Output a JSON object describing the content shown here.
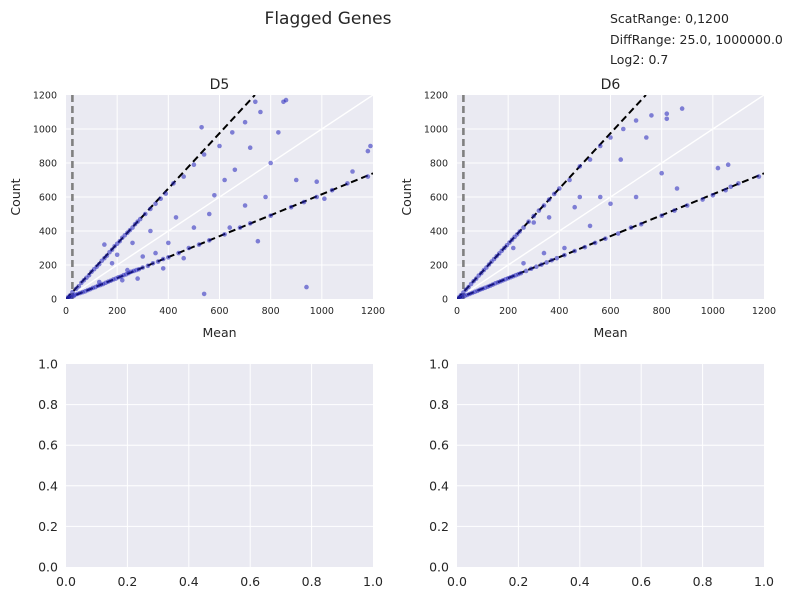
{
  "figure": {
    "title": "Flagged Genes",
    "notes": [
      "ScatRange: 0,1200",
      "DiffRange: 25.0, 1000000.0",
      "Log2: 0.7"
    ]
  },
  "colors": {
    "panel_bg": "#EAEAF2",
    "grid": "#FFFFFF",
    "points": "#2222BB",
    "fit_lines": "#000000",
    "threshold_line": "#808080"
  },
  "chart_data": [
    {
      "type": "scatter",
      "title": "D5",
      "xlabel": "Mean",
      "ylabel": "Count",
      "xlim": [
        0,
        1200
      ],
      "ylim": [
        0,
        1200
      ],
      "xticks": [
        "0",
        "200",
        "400",
        "600",
        "800",
        "1000",
        "1200"
      ],
      "yticks": [
        "0",
        "200",
        "400",
        "600",
        "800",
        "1000",
        "1200"
      ],
      "grid": true,
      "reference_lines": [
        {
          "kind": "identity",
          "style": "solid",
          "color": "#FFFFFF",
          "slope": 1.0
        },
        {
          "kind": "upper-fold",
          "style": "dashed",
          "color": "#000000",
          "slope": 1.625
        },
        {
          "kind": "lower-fold",
          "style": "dashed",
          "color": "#000000",
          "slope": 0.616
        },
        {
          "kind": "threshold",
          "style": "dashed",
          "color": "#808080",
          "x": 25
        }
      ],
      "points": [
        [
          5,
          8
        ],
        [
          10,
          6
        ],
        [
          15,
          20
        ],
        [
          20,
          10
        ],
        [
          25,
          40
        ],
        [
          30,
          18
        ],
        [
          35,
          25
        ],
        [
          40,
          60
        ],
        [
          45,
          30
        ],
        [
          50,
          75
        ],
        [
          55,
          35
        ],
        [
          60,
          95
        ],
        [
          65,
          40
        ],
        [
          70,
          110
        ],
        [
          75,
          45
        ],
        [
          80,
          125
        ],
        [
          85,
          52
        ],
        [
          90,
          140
        ],
        [
          95,
          58
        ],
        [
          100,
          160
        ],
        [
          105,
          65
        ],
        [
          110,
          175
        ],
        [
          115,
          70
        ],
        [
          120,
          190
        ],
        [
          125,
          78
        ],
        [
          130,
          205
        ],
        [
          135,
          82
        ],
        [
          140,
          225
        ],
        [
          145,
          88
        ],
        [
          150,
          240
        ],
        [
          155,
          95
        ],
        [
          160,
          255
        ],
        [
          165,
          102
        ],
        [
          170,
          275
        ],
        [
          175,
          108
        ],
        [
          180,
          290
        ],
        [
          185,
          115
        ],
        [
          190,
          310
        ],
        [
          195,
          120
        ],
        [
          200,
          325
        ],
        [
          205,
          128
        ],
        [
          210,
          340
        ],
        [
          215,
          132
        ],
        [
          220,
          360
        ],
        [
          225,
          140
        ],
        [
          230,
          375
        ],
        [
          235,
          145
        ],
        [
          240,
          390
        ],
        [
          245,
          152
        ],
        [
          250,
          405
        ],
        [
          255,
          160
        ],
        [
          260,
          420
        ],
        [
          265,
          165
        ],
        [
          270,
          440
        ],
        [
          275,
          170
        ],
        [
          280,
          455
        ],
        [
          285,
          175
        ],
        [
          290,
          470
        ],
        [
          300,
          185
        ],
        [
          310,
          500
        ],
        [
          320,
          195
        ],
        [
          330,
          530
        ],
        [
          340,
          210
        ],
        [
          350,
          560
        ],
        [
          360,
          220
        ],
        [
          370,
          590
        ],
        [
          380,
          235
        ],
        [
          390,
          620
        ],
        [
          400,
          245
        ],
        [
          420,
          680
        ],
        [
          440,
          270
        ],
        [
          460,
          720
        ],
        [
          480,
          300
        ],
        [
          500,
          790
        ],
        [
          520,
          320
        ],
        [
          540,
          850
        ],
        [
          560,
          345
        ],
        [
          600,
          900
        ],
        [
          620,
          380
        ],
        [
          650,
          980
        ],
        [
          680,
          420
        ],
        [
          700,
          1040
        ],
        [
          720,
          445
        ],
        [
          760,
          1100
        ],
        [
          800,
          490
        ],
        [
          850,
          1160
        ],
        [
          880,
          540
        ],
        [
          930,
          570
        ],
        [
          980,
          600
        ],
        [
          1040,
          640
        ],
        [
          1100,
          680
        ],
        [
          1180,
          720
        ],
        [
          130,
          100
        ],
        [
          150,
          320
        ],
        [
          180,
          210
        ],
        [
          200,
          260
        ],
        [
          220,
          110
        ],
        [
          240,
          170
        ],
        [
          260,
          330
        ],
        [
          280,
          120
        ],
        [
          300,
          250
        ],
        [
          330,
          400
        ],
        [
          350,
          270
        ],
        [
          380,
          180
        ],
        [
          400,
          330
        ],
        [
          430,
          480
        ],
        [
          460,
          240
        ],
        [
          500,
          420
        ],
        [
          530,
          1010
        ],
        [
          540,
          30
        ],
        [
          560,
          500
        ],
        [
          580,
          610
        ],
        [
          620,
          700
        ],
        [
          640,
          420
        ],
        [
          660,
          760
        ],
        [
          700,
          550
        ],
        [
          720,
          890
        ],
        [
          740,
          1160
        ],
        [
          750,
          340
        ],
        [
          780,
          600
        ],
        [
          800,
          800
        ],
        [
          830,
          980
        ],
        [
          860,
          1170
        ],
        [
          900,
          700
        ],
        [
          940,
          70
        ],
        [
          980,
          690
        ],
        [
          1010,
          590
        ],
        [
          1120,
          750
        ],
        [
          1180,
          870
        ],
        [
          1190,
          900
        ]
      ]
    },
    {
      "type": "scatter",
      "title": "D6",
      "xlabel": "Mean",
      "ylabel": "Count",
      "xlim": [
        0,
        1200
      ],
      "ylim": [
        0,
        1200
      ],
      "xticks": [
        "0",
        "200",
        "400",
        "600",
        "800",
        "1000",
        "1200"
      ],
      "yticks": [
        "0",
        "200",
        "400",
        "600",
        "800",
        "1000",
        "1200"
      ],
      "grid": true,
      "reference_lines": [
        {
          "kind": "identity",
          "style": "solid",
          "color": "#FFFFFF",
          "slope": 1.0
        },
        {
          "kind": "upper-fold",
          "style": "dashed",
          "color": "#000000",
          "slope": 1.625
        },
        {
          "kind": "lower-fold",
          "style": "dashed",
          "color": "#000000",
          "slope": 0.616
        },
        {
          "kind": "threshold",
          "style": "dashed",
          "color": "#808080",
          "x": 25
        }
      ],
      "points": [
        [
          5,
          8
        ],
        [
          10,
          6
        ],
        [
          15,
          22
        ],
        [
          20,
          12
        ],
        [
          25,
          38
        ],
        [
          30,
          18
        ],
        [
          35,
          55
        ],
        [
          40,
          24
        ],
        [
          45,
          70
        ],
        [
          50,
          30
        ],
        [
          55,
          88
        ],
        [
          60,
          36
        ],
        [
          65,
          105
        ],
        [
          70,
          42
        ],
        [
          75,
          120
        ],
        [
          80,
          48
        ],
        [
          85,
          138
        ],
        [
          90,
          55
        ],
        [
          95,
          152
        ],
        [
          100,
          60
        ],
        [
          105,
          170
        ],
        [
          110,
          66
        ],
        [
          115,
          185
        ],
        [
          120,
          72
        ],
        [
          125,
          203
        ],
        [
          130,
          78
        ],
        [
          135,
          220
        ],
        [
          140,
          85
        ],
        [
          145,
          235
        ],
        [
          150,
          92
        ],
        [
          155,
          252
        ],
        [
          160,
          98
        ],
        [
          165,
          268
        ],
        [
          170,
          104
        ],
        [
          175,
          284
        ],
        [
          180,
          110
        ],
        [
          185,
          300
        ],
        [
          190,
          116
        ],
        [
          195,
          316
        ],
        [
          200,
          122
        ],
        [
          205,
          332
        ],
        [
          210,
          128
        ],
        [
          215,
          348
        ],
        [
          220,
          134
        ],
        [
          225,
          365
        ],
        [
          230,
          140
        ],
        [
          235,
          380
        ],
        [
          240,
          146
        ],
        [
          245,
          397
        ],
        [
          250,
          152
        ],
        [
          260,
          420
        ],
        [
          270,
          165
        ],
        [
          280,
          455
        ],
        [
          290,
          178
        ],
        [
          300,
          488
        ],
        [
          310,
          190
        ],
        [
          320,
          520
        ],
        [
          330,
          202
        ],
        [
          340,
          550
        ],
        [
          350,
          215
        ],
        [
          360,
          585
        ],
        [
          370,
          228
        ],
        [
          380,
          618
        ],
        [
          390,
          240
        ],
        [
          400,
          650
        ],
        [
          420,
          258
        ],
        [
          440,
          700
        ],
        [
          460,
          282
        ],
        [
          480,
          780
        ],
        [
          500,
          305
        ],
        [
          520,
          820
        ],
        [
          540,
          330
        ],
        [
          560,
          900
        ],
        [
          580,
          355
        ],
        [
          600,
          950
        ],
        [
          630,
          385
        ],
        [
          650,
          1000
        ],
        [
          680,
          420
        ],
        [
          700,
          1050
        ],
        [
          720,
          440
        ],
        [
          760,
          1080
        ],
        [
          800,
          490
        ],
        [
          820,
          1090
        ],
        [
          850,
          520
        ],
        [
          880,
          1120
        ],
        [
          900,
          550
        ],
        [
          960,
          585
        ],
        [
          1000,
          610
        ],
        [
          1050,
          640
        ],
        [
          1070,
          660
        ],
        [
          1100,
          680
        ],
        [
          1180,
          720
        ],
        [
          220,
          300
        ],
        [
          260,
          210
        ],
        [
          300,
          450
        ],
        [
          340,
          270
        ],
        [
          360,
          480
        ],
        [
          420,
          300
        ],
        [
          460,
          540
        ],
        [
          480,
          600
        ],
        [
          520,
          430
        ],
        [
          560,
          600
        ],
        [
          600,
          560
        ],
        [
          640,
          820
        ],
        [
          700,
          600
        ],
        [
          740,
          950
        ],
        [
          800,
          740
        ],
        [
          820,
          1060
        ],
        [
          860,
          650
        ],
        [
          1020,
          770
        ],
        [
          1060,
          790
        ]
      ]
    },
    {
      "type": "scatter",
      "title": "",
      "xlabel": "",
      "ylabel": "",
      "xlim": [
        0,
        1
      ],
      "ylim": [
        0,
        1
      ],
      "xticks": [
        "0.0",
        "0.2",
        "0.4",
        "0.6",
        "0.8",
        "1.0"
      ],
      "yticks": [
        "0.0",
        "0.2",
        "0.4",
        "0.6",
        "0.8",
        "1.0"
      ],
      "grid": true,
      "points": []
    },
    {
      "type": "scatter",
      "title": "",
      "xlabel": "",
      "ylabel": "",
      "xlim": [
        0,
        1
      ],
      "ylim": [
        0,
        1
      ],
      "xticks": [
        "0.0",
        "0.2",
        "0.4",
        "0.6",
        "0.8",
        "1.0"
      ],
      "yticks": [
        "0.0",
        "0.2",
        "0.4",
        "0.6",
        "0.8",
        "1.0"
      ],
      "grid": true,
      "points": []
    }
  ]
}
